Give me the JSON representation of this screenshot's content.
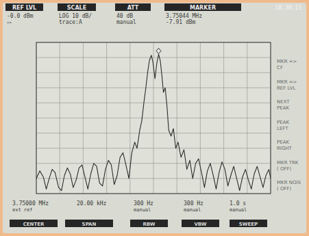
{
  "chart_data": {
    "type": "line",
    "color": "#2b2b2b",
    "grid": true,
    "tick_labels": false,
    "xlim": [
      3.74,
      3.76
    ],
    "ylim": [
      -100,
      0
    ],
    "xticks": [
      3.74,
      3.742,
      3.744,
      3.746,
      3.748,
      3.75,
      3.752,
      3.754,
      3.756,
      3.758,
      3.76
    ],
    "yticks": [
      0,
      -10,
      -20,
      -30,
      -40,
      -50,
      -60,
      -70,
      -80,
      -90,
      -100
    ],
    "x": [
      3.74,
      3.7403,
      3.7406,
      3.74085,
      3.7411,
      3.74135,
      3.7416,
      3.7419,
      3.74215,
      3.7424,
      3.74265,
      3.7429,
      3.74315,
      3.7434,
      3.74365,
      3.7439,
      3.74415,
      3.7444,
      3.74465,
      3.7449,
      3.74515,
      3.7454,
      3.74565,
      3.7459,
      3.74615,
      3.7464,
      3.74665,
      3.7469,
      3.74715,
      3.7474,
      3.74765,
      3.7479,
      3.74815,
      3.7484,
      3.7486,
      3.74883,
      3.749,
      3.74918,
      3.74935,
      3.7495,
      3.74965,
      3.74982,
      3.74995,
      3.75013,
      3.75028,
      3.75044,
      3.75058,
      3.75072,
      3.75085,
      3.751,
      3.75115,
      3.7513,
      3.7515,
      3.7517,
      3.7519,
      3.7521,
      3.75235,
      3.7526,
      3.75285,
      3.7531,
      3.75335,
      3.7536,
      3.75385,
      3.7541,
      3.75435,
      3.7546,
      3.75485,
      3.7551,
      3.75535,
      3.7556,
      3.75585,
      3.7561,
      3.75635,
      3.7566,
      3.75685,
      3.7571,
      3.75735,
      3.7576,
      3.75785,
      3.7581,
      3.75835,
      3.7586,
      3.75885,
      3.7591,
      3.75935,
      3.7596,
      3.75985,
      3.76
    ],
    "values": [
      -90,
      -85,
      -89,
      -97,
      -90,
      -84,
      -86,
      -96,
      -98,
      -88,
      -83,
      -87,
      -96,
      -91,
      -83,
      -81,
      -89,
      -97,
      -87,
      -80,
      -82,
      -93,
      -95,
      -84,
      -78,
      -81,
      -94,
      -88,
      -76,
      -73,
      -81,
      -90,
      -73,
      -66,
      -70,
      -58,
      -52,
      -40,
      -30,
      -20,
      -12,
      -8.5,
      -13,
      -24,
      -14,
      -7.91,
      -12,
      -22,
      -33,
      -30,
      -42,
      -58,
      -62,
      -57,
      -70,
      -66,
      -76,
      -71,
      -84,
      -78,
      -90,
      -80,
      -77,
      -86,
      -96,
      -85,
      -80,
      -88,
      -97,
      -86,
      -79,
      -84,
      -95,
      -88,
      -82,
      -90,
      -98,
      -89,
      -84,
      -91,
      -97,
      -87,
      -82,
      -89,
      -96,
      -88,
      -84,
      -90
    ],
    "marker": {
      "x": 3.75044,
      "value": -7.91
    }
  },
  "time": "18:30:13",
  "header": [
    {
      "title": "REF LVL",
      "lines": [
        "-0.0 dBm",
        ">>"
      ]
    },
    {
      "title": "SCALE",
      "lines": [
        "LOG 10 dB/",
        "trace:A"
      ]
    },
    {
      "title": "ATT",
      "lines": [
        "40 dB",
        "manual"
      ]
    },
    {
      "title": "MARKER",
      "lines": [
        "3.75044 MHz",
        "-7.91 dBm"
      ]
    }
  ],
  "softkeys": [
    [
      "MKR =>",
      "CF"
    ],
    [
      "MKR =>",
      "REF LVL"
    ],
    [
      "NEXT",
      "PEAK"
    ],
    [
      "PEAK",
      "LEFT"
    ],
    [
      "PEAK",
      "RIGHT"
    ],
    [
      "MKR TRK",
      "( OFF)"
    ],
    [
      "MKR NOIS",
      "( OFF)"
    ]
  ],
  "footer": [
    {
      "lines": [
        "3.75000 MHz",
        "ext ref"
      ],
      "button": "CENTER"
    },
    {
      "lines": [
        "20.00 kHz"
      ],
      "button": "SPAN"
    },
    {
      "lines": [
        "300 Hz",
        "manual"
      ],
      "button": "RBW"
    },
    {
      "lines": [
        "300 Hz",
        "manual"
      ],
      "button": "VBW"
    },
    {
      "lines": [
        "1.0 s",
        "manual"
      ],
      "button": "SWEEP"
    }
  ]
}
